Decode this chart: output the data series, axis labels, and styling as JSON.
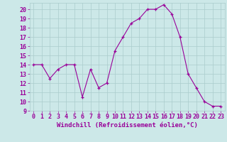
{
  "x": [
    0,
    1,
    2,
    3,
    4,
    5,
    6,
    7,
    8,
    9,
    10,
    11,
    12,
    13,
    14,
    15,
    16,
    17,
    18,
    19,
    20,
    21,
    22,
    23
  ],
  "y": [
    14,
    14,
    12.5,
    13.5,
    14,
    14,
    10.5,
    13.5,
    11.5,
    12,
    15.5,
    17,
    18.5,
    19,
    20,
    20,
    20.5,
    19.5,
    17,
    13,
    11.5,
    10,
    9.5,
    9.5
  ],
  "line_color": "#990099",
  "marker": "+",
  "marker_color": "#990099",
  "bg_color": "#cce8e8",
  "grid_color": "#aacccc",
  "xlabel": "Windchill (Refroidissement éolien,°C)",
  "xlabel_color": "#990099",
  "xlabel_fontsize": 6.5,
  "tick_color": "#990099",
  "tick_fontsize": 6.0,
  "ylim": [
    9,
    20.7
  ],
  "xlim": [
    -0.5,
    23.5
  ],
  "yticks": [
    9,
    10,
    11,
    12,
    13,
    14,
    15,
    16,
    17,
    18,
    19,
    20
  ],
  "xticks": [
    0,
    1,
    2,
    3,
    4,
    5,
    6,
    7,
    8,
    9,
    10,
    11,
    12,
    13,
    14,
    15,
    16,
    17,
    18,
    19,
    20,
    21,
    22,
    23
  ]
}
